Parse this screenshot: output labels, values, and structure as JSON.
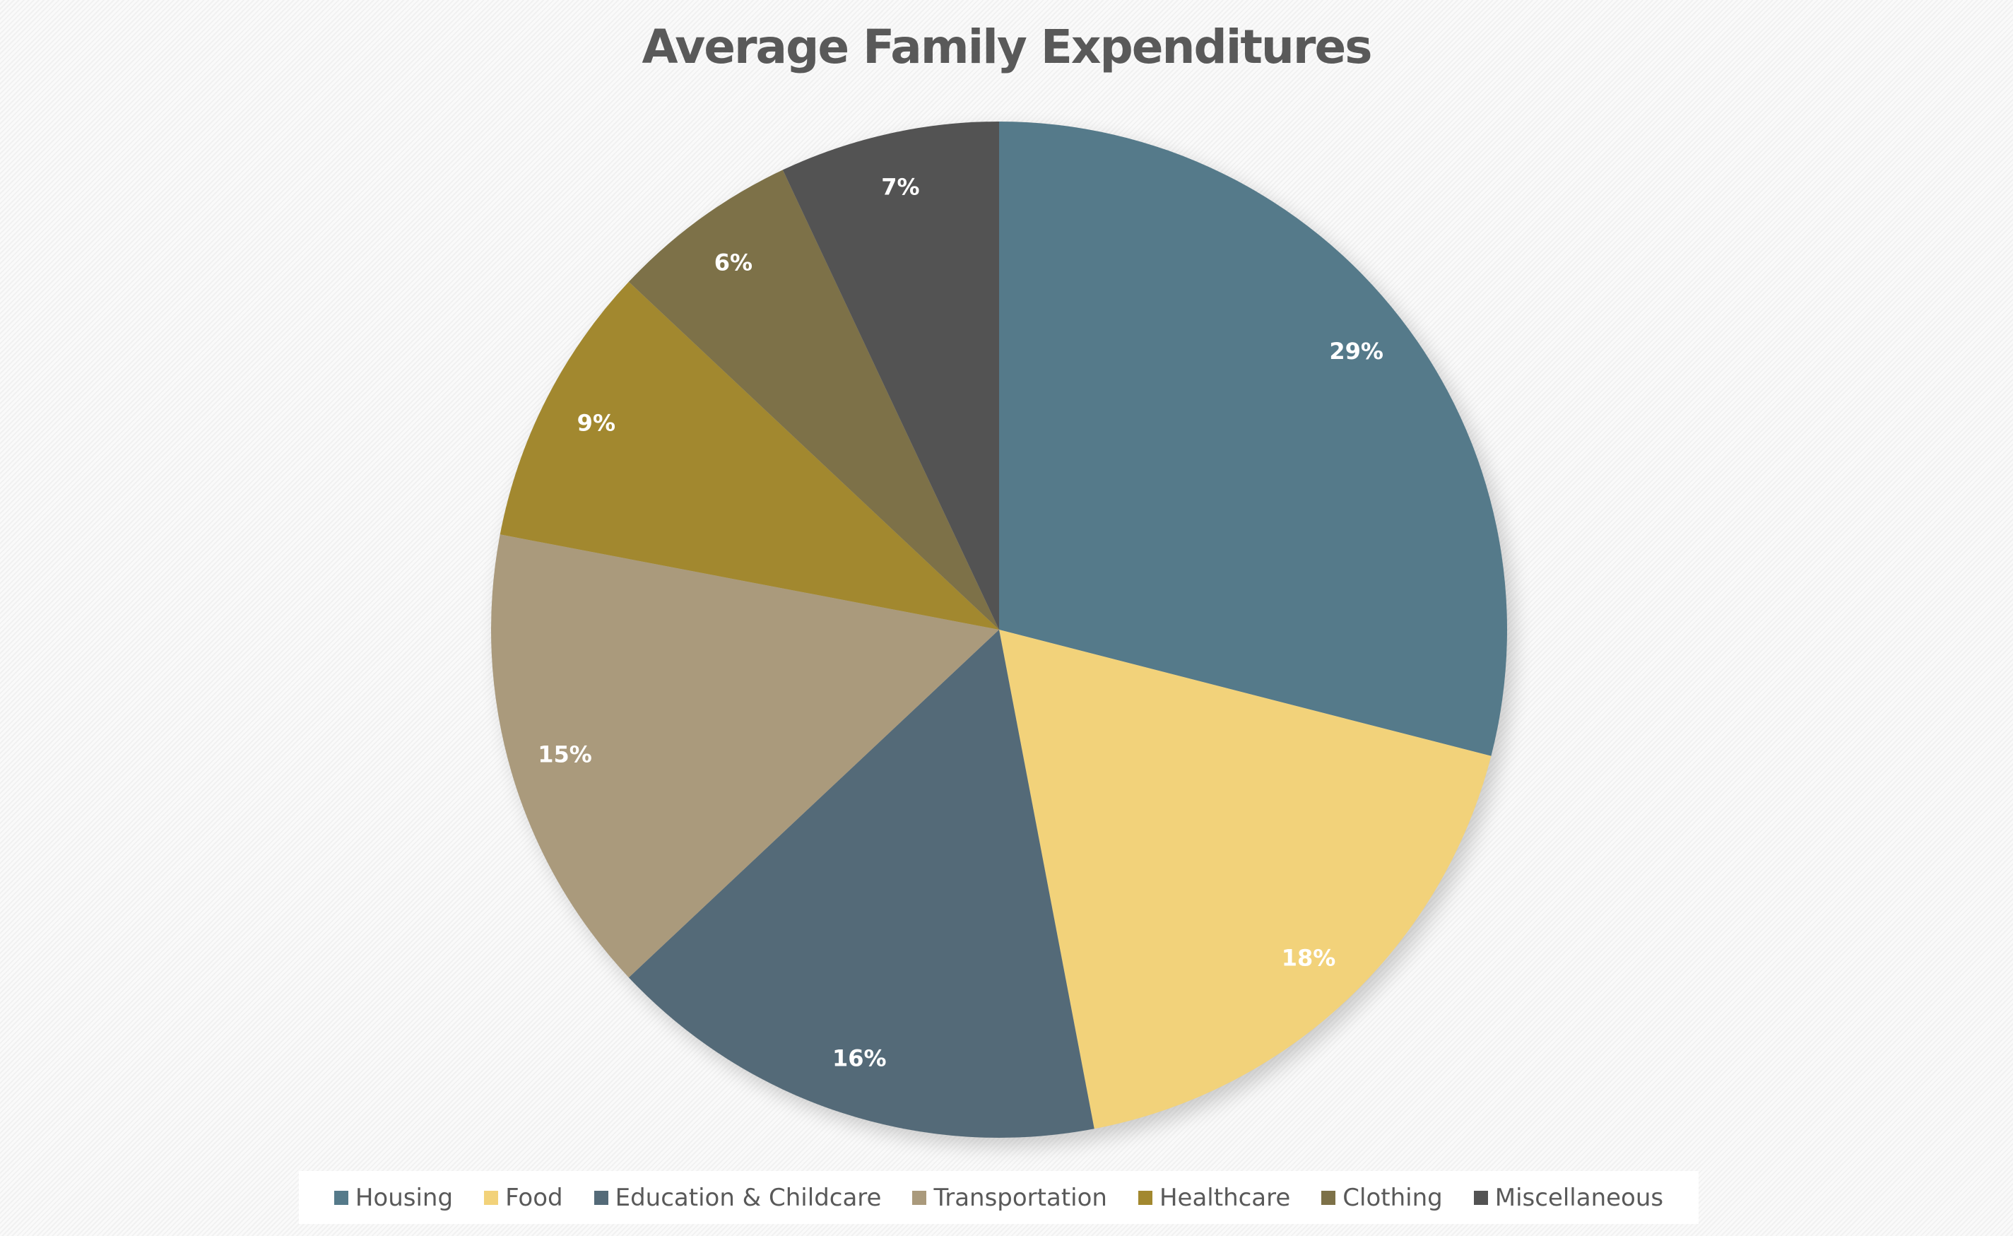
{
  "chart_data": {
    "type": "pie",
    "title": "Average Family Expenditures",
    "legend_position": "bottom",
    "slices": [
      {
        "name": "Housing",
        "value": 29,
        "label": "29%",
        "color": "#557A8A"
      },
      {
        "name": "Food",
        "value": 18,
        "label": "18%",
        "color": "#F2D27A"
      },
      {
        "name": "Education & Childcare",
        "value": 16,
        "label": "16%",
        "color": "#546A78"
      },
      {
        "name": "Transportation",
        "value": 15,
        "label": "15%",
        "color": "#AA9A7C"
      },
      {
        "name": "Healthcare",
        "value": 9,
        "label": "9%",
        "color": "#A2882F"
      },
      {
        "name": "Clothing",
        "value": 6,
        "label": "6%",
        "color": "#7D7148"
      },
      {
        "name": "Miscellaneous",
        "value": 7,
        "label": "7%",
        "color": "#535353"
      }
    ]
  }
}
